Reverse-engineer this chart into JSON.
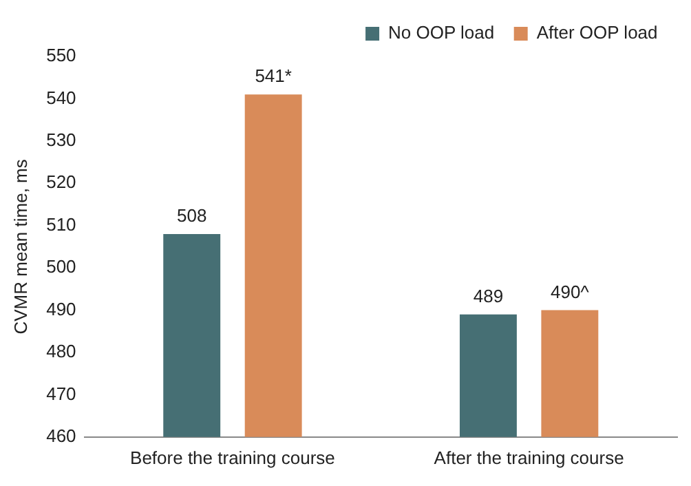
{
  "chart_data": {
    "type": "bar",
    "ylabel": "CVMR mean time, ms",
    "categories": [
      "Before the training course",
      "After the training course"
    ],
    "series": [
      {
        "name": "No OOP load",
        "color": "#466f74",
        "values": [
          508,
          489
        ],
        "value_labels": [
          "508",
          "489"
        ]
      },
      {
        "name": "After OOP load",
        "color": "#d98b59",
        "values": [
          541,
          490
        ],
        "value_labels": [
          "541*",
          "490^"
        ]
      }
    ],
    "ylim": [
      460,
      550
    ],
    "yticks": [
      460,
      470,
      480,
      490,
      500,
      510,
      520,
      530,
      540,
      550
    ],
    "grid": false,
    "legend": "top right"
  }
}
